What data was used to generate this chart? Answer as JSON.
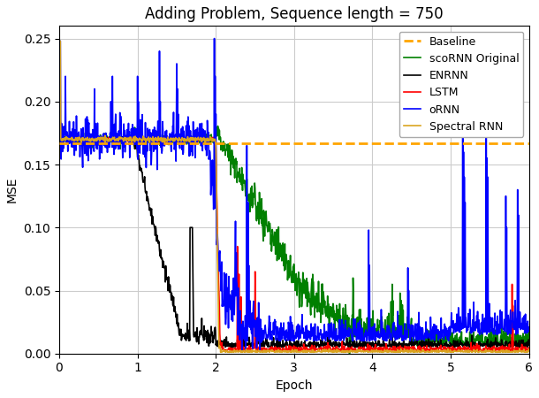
{
  "title": "Adding Problem, Sequence length = 750",
  "xlabel": "Epoch",
  "ylabel": "MSE",
  "xlim": [
    0,
    6
  ],
  "ylim": [
    0.0,
    0.26
  ],
  "yticks": [
    0.0,
    0.05,
    0.1,
    0.15,
    0.2,
    0.25
  ],
  "xticks": [
    0,
    1,
    2,
    3,
    4,
    5,
    6
  ],
  "baseline_value": 0.167,
  "baseline_color": "#FFA500",
  "baseline_style": "--",
  "baseline_label": "Baseline",
  "series": {
    "scoRNN": {
      "color": "#008000",
      "label": "scoRNN Original",
      "lw": 1.2
    },
    "ENRNN": {
      "color": "#000000",
      "label": "ENRNN",
      "lw": 1.2
    },
    "LSTM": {
      "color": "#FF0000",
      "label": "LSTM",
      "lw": 1.2
    },
    "oRNN": {
      "color": "#0000FF",
      "label": "oRNN",
      "lw": 1.2
    },
    "SpectralRNN": {
      "color": "#DAA520",
      "label": "Spectral RNN",
      "lw": 1.2
    }
  },
  "legend_loc": "upper right",
  "grid": true,
  "figsize": [
    6.1,
    4.5
  ],
  "dpi": 100
}
